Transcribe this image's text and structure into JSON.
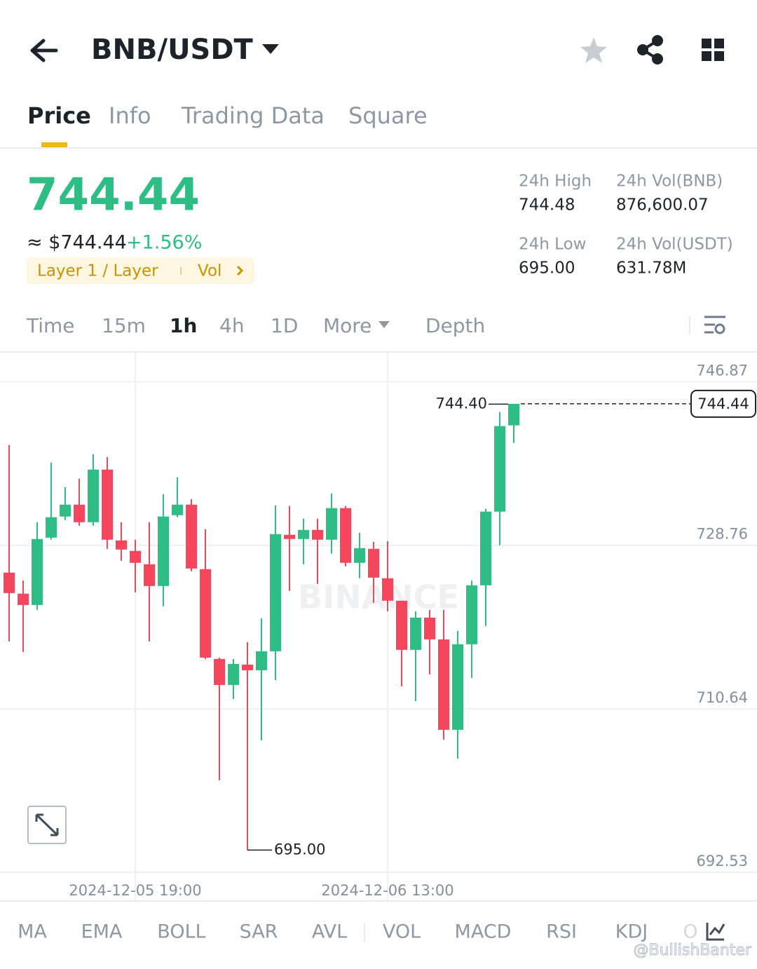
{
  "header": {
    "pair": "BNB/USDT"
  },
  "tabs": [
    "Price",
    "Info",
    "Trading Data",
    "Square"
  ],
  "price": {
    "last": "744.44",
    "usd": "≈ $744.44",
    "change": "+1.56%",
    "tag": "Layer 1 / Layer",
    "tag_link": "Vol"
  },
  "stats": [
    {
      "label": "24h High",
      "value": "744.48"
    },
    {
      "label": "24h Vol(BNB)",
      "value": "876,600.07"
    },
    {
      "label": "24h Low",
      "value": "695.00"
    },
    {
      "label": "24h Vol(USDT)",
      "value": "631.78M"
    }
  ],
  "intervals": [
    "Time",
    "15m",
    "1h",
    "4h",
    "1D",
    "More",
    "Depth"
  ],
  "indicators": [
    "MA",
    "EMA",
    "BOLL",
    "SAR",
    "AVL",
    "VOL",
    "MACD",
    "RSI",
    "KDJ",
    "O"
  ],
  "watermark": "@BullishBanter",
  "chart_data": {
    "type": "candlestick",
    "watermark": "BINANCE",
    "categories": [
      null,
      null,
      null,
      null,
      null,
      null,
      null,
      null,
      null,
      "2024-12-05 19:00",
      null,
      null,
      null,
      null,
      null,
      null,
      null,
      null,
      null,
      null,
      null,
      null,
      null,
      null,
      null,
      null,
      null,
      "2024-12-06 13:00",
      null,
      null,
      null,
      null,
      null,
      null,
      null,
      null,
      null
    ],
    "open": [
      725.73,
      723.4,
      722.15,
      729.61,
      731.95,
      733.27,
      731.32,
      737.15,
      729.3,
      728.14,
      726.66,
      724.25,
      732.1,
      733.27,
      726.12,
      716.17,
      713.29,
      715.54,
      714.92,
      717.02,
      729.92,
      729.46,
      730.47,
      729.38,
      732.88,
      726.82,
      728.37,
      725.11,
      722.62,
      717.18,
      720.75,
      718.34,
      708.32,
      717.8,
      724.33,
      732.49,
      742.05
    ],
    "high": [
      739.87,
      724.87,
      731.32,
      737.93,
      735.21,
      736.14,
      738.86,
      738.55,
      731.32,
      729.38,
      731.32,
      734.43,
      736.3,
      733.89,
      730.55,
      716.32,
      716.17,
      718.03,
      720.67,
      733.19,
      733.11,
      731.71,
      731.71,
      734.51,
      733.11,
      730.16,
      729.15,
      729.22,
      722.62,
      721.45,
      721.61,
      721.61,
      719.28,
      724.87,
      732.8,
      743.53,
      744.4
    ],
    "low": [
      718.11,
      716.94,
      721.61,
      729.38,
      731.56,
      730.94,
      730.94,
      728.37,
      727.05,
      723.55,
      718.11,
      722.0,
      731.87,
      725.88,
      716.17,
      702.72,
      711.74,
      695.0,
      707.15,
      713.83,
      723.71,
      726.66,
      724.48,
      727.83,
      726.43,
      725.11,
      722.39,
      721.45,
      713.13,
      711.5,
      714.46,
      707.23,
      705.13,
      714.07,
      719.82,
      728.76,
      740.11
    ],
    "close": [
      723.47,
      722.15,
      729.46,
      731.87,
      733.27,
      731.32,
      737.15,
      729.38,
      728.29,
      726.82,
      724.25,
      731.95,
      733.27,
      726.19,
      716.32,
      713.29,
      715.62,
      714.92,
      717.02,
      730.0,
      729.46,
      730.47,
      729.38,
      732.88,
      726.82,
      728.45,
      725.18,
      722.62,
      717.18,
      720.75,
      718.34,
      708.32,
      717.8,
      724.33,
      732.49,
      741.97,
      744.44
    ],
    "up_color": "#2ebd85",
    "down_color": "#f6465d",
    "ylim": [
      692.0,
      750.1
    ],
    "yticks": [
      746.87,
      728.76,
      710.64,
      692.53
    ],
    "grid": true,
    "last_price": 744.44,
    "high_marker": {
      "value": 744.4,
      "label": "744.40"
    },
    "low_marker": {
      "value": 695,
      "label": "695.00"
    }
  }
}
